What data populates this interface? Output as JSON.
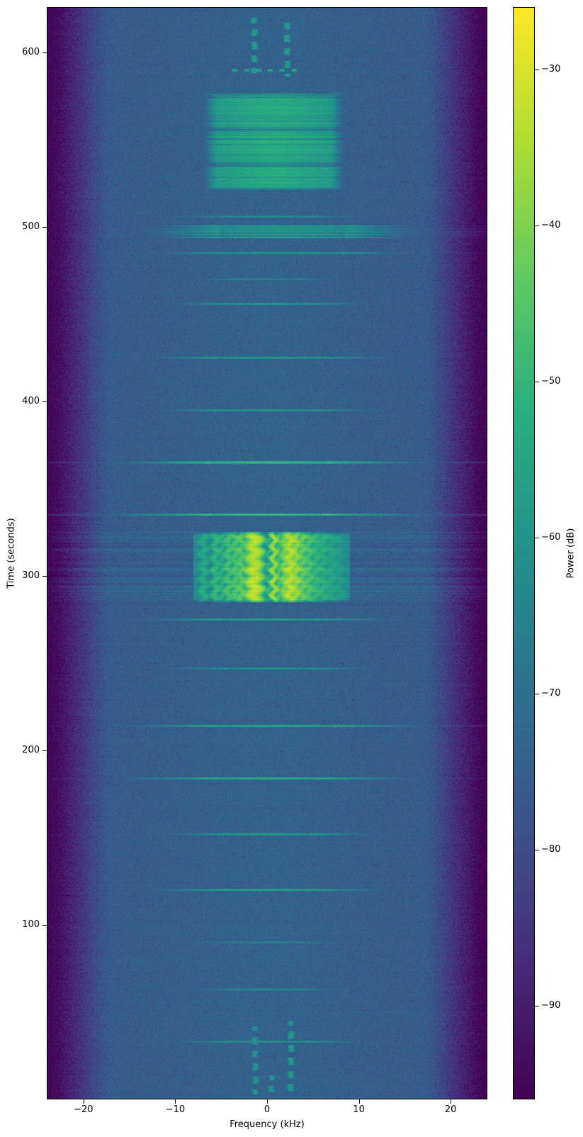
{
  "chart_data": {
    "type": "heatmap",
    "title": "",
    "xlabel": "Frequency (kHz)",
    "ylabel": "Time (seconds)",
    "colorbar_label": "Power (dB)",
    "x_range_khz": [
      -24,
      24
    ],
    "y_range_s": [
      0,
      626
    ],
    "clim_db": [
      -96,
      -26
    ],
    "xticks": [
      -20,
      -10,
      0,
      10,
      20
    ],
    "yticks": [
      100,
      200,
      300,
      400,
      500,
      600
    ],
    "cbar_ticks": [
      -30,
      -40,
      -50,
      -60,
      -70,
      -80,
      -90
    ],
    "colormap": "viridis",
    "viridis_stops": [
      [
        0.0,
        [
          68,
          1,
          84
        ]
      ],
      [
        0.13,
        [
          71,
          45,
          123
        ]
      ],
      [
        0.25,
        [
          59,
          82,
          139
        ]
      ],
      [
        0.38,
        [
          44,
          114,
          142
        ]
      ],
      [
        0.5,
        [
          33,
          145,
          140
        ]
      ],
      [
        0.63,
        [
          40,
          174,
          128
        ]
      ],
      [
        0.75,
        [
          94,
          201,
          98
        ]
      ],
      [
        0.88,
        [
          176,
          221,
          47
        ]
      ],
      [
        1.0,
        [
          253,
          231,
          37
        ]
      ]
    ],
    "noise_floor_db": -75.5,
    "edge_fade": {
      "start_khz": 18.2,
      "slope_db_per_khz": 3.4
    },
    "center_haze": {
      "amp_db": 1.8,
      "sigma_khz": 7.5
    },
    "burst": {
      "t": [
        285,
        325
      ],
      "f": [
        -8,
        9
      ],
      "floor_db": -63,
      "edge_stripe_db": 7,
      "streaks": [
        [
          -6.9,
          0.35,
          -54
        ],
        [
          -5.6,
          0.3,
          -50
        ],
        [
          -4.9,
          0.3,
          -52
        ],
        [
          -4.2,
          0.3,
          -47
        ],
        [
          -3.4,
          0.35,
          -46
        ],
        [
          -2.8,
          0.3,
          -44
        ],
        [
          -2.1,
          0.3,
          -48
        ],
        [
          -1.4,
          0.45,
          -33
        ],
        [
          -0.5,
          0.25,
          -56
        ],
        [
          0.3,
          0.2,
          -50
        ],
        [
          0.75,
          0.18,
          -36
        ],
        [
          1.3,
          0.3,
          -46
        ],
        [
          2.0,
          0.3,
          -40
        ],
        [
          2.5,
          0.35,
          -34
        ],
        [
          3.1,
          0.3,
          -37
        ],
        [
          3.8,
          0.35,
          -43
        ],
        [
          4.5,
          0.35,
          -46
        ],
        [
          5.3,
          0.4,
          -50
        ],
        [
          6.1,
          0.4,
          -52
        ],
        [
          7.0,
          0.5,
          -55
        ],
        [
          7.9,
          0.5,
          -58
        ]
      ]
    },
    "blob": {
      "t": [
        521,
        577
      ],
      "f": [
        -6,
        7.5
      ],
      "base_db": -60,
      "peak_boost_db": 7,
      "center_khz": 0.8,
      "sigma_khz": 4,
      "gaps_t": [
        [
          534.5,
          537
        ],
        [
          554.5,
          557.5
        ]
      ]
    },
    "hlines": [
      [
        33,
        -3.8,
        4.0,
        -57
      ],
      [
        63,
        -3.0,
        3.2,
        -60
      ],
      [
        90,
        -2.6,
        3.0,
        -61
      ],
      [
        120,
        -4.2,
        4.2,
        -52
      ],
      [
        152,
        -4.0,
        4.6,
        -55
      ],
      [
        184,
        -5.2,
        5.5,
        -49
      ],
      [
        214,
        -5.4,
        7.2,
        -50
      ],
      [
        247,
        -4.2,
        4.6,
        -57
      ],
      [
        275,
        -5.0,
        5.2,
        -53
      ],
      [
        335,
        -6.0,
        6.0,
        -45
      ],
      [
        365,
        -6.0,
        6.5,
        -46
      ],
      [
        395,
        -4.6,
        4.6,
        -55
      ],
      [
        425,
        -5.4,
        5.6,
        -55
      ],
      [
        456,
        -4.2,
        4.2,
        -56
      ],
      [
        470,
        -3.0,
        3.0,
        -61
      ],
      [
        485,
        -4.6,
        8.0,
        -55
      ],
      [
        494,
        -5.0,
        8.5,
        -55
      ],
      [
        495.6,
        -5.0,
        8.5,
        -54
      ],
      [
        497.2,
        -5.2,
        8.5,
        -53
      ],
      [
        498.8,
        -5.0,
        8.5,
        -54
      ],
      [
        500.4,
        -5.0,
        8.5,
        -55
      ],
      [
        506,
        -3.5,
        4.0,
        -58
      ]
    ],
    "vdashes": [
      [
        -1.3,
        3,
        42,
        -60
      ],
      [
        2.6,
        3,
        45,
        -58
      ],
      [
        0.5,
        4,
        14,
        -60
      ],
      [
        -1.4,
        588,
        620,
        -57
      ],
      [
        2.2,
        586,
        617,
        -57
      ]
    ],
    "dot_rows": [
      [
        590,
        -4.5,
        4.0,
        -56
      ]
    ]
  }
}
